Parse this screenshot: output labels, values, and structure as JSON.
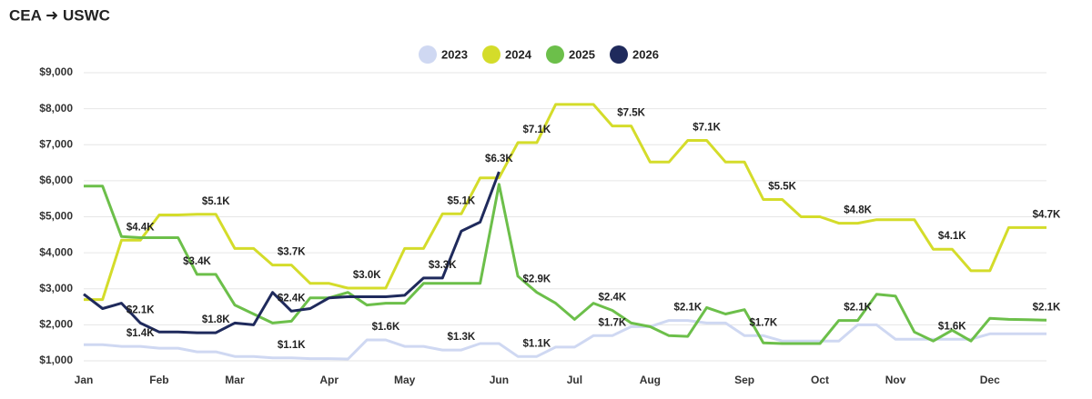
{
  "chart_data": {
    "type": "line",
    "title": "CEA ➜ USWC",
    "categories": [
      "Jan",
      null,
      null,
      null,
      "Feb",
      null,
      null,
      null,
      "Mar",
      null,
      null,
      null,
      null,
      "Apr",
      null,
      null,
      null,
      "May",
      null,
      null,
      null,
      null,
      "Jun",
      null,
      null,
      null,
      "Jul",
      null,
      null,
      null,
      "Aug",
      null,
      null,
      null,
      null,
      "Sep",
      null,
      null,
      null,
      "Oct",
      null,
      null,
      null,
      "Nov",
      null,
      null,
      null,
      null,
      "Dec",
      null,
      null,
      null
    ],
    "ylim": [
      1000,
      9000
    ],
    "yticks": [
      {
        "value": 1000,
        "label": "$1,000"
      },
      {
        "value": 2000,
        "label": "$2,000"
      },
      {
        "value": 3000,
        "label": "$3,000"
      },
      {
        "value": 4000,
        "label": "$4,000"
      },
      {
        "value": 5000,
        "label": "$5,000"
      },
      {
        "value": 6000,
        "label": "$6,000"
      },
      {
        "value": 7000,
        "label": "$7,000"
      },
      {
        "value": 8000,
        "label": "$8,000"
      },
      {
        "value": 9000,
        "label": "$9,000"
      }
    ],
    "grid": true,
    "legend": "top",
    "series": [
      {
        "name": "2023",
        "color": "#cfd8f2",
        "values": [
          1450,
          1450,
          1400,
          1400,
          1350,
          1350,
          1250,
          1250,
          1120,
          1120,
          1080,
          1080,
          1060,
          1060,
          1050,
          1580,
          1580,
          1400,
          1400,
          1300,
          1300,
          1480,
          1480,
          1120,
          1120,
          1380,
          1380,
          1700,
          1700,
          1950,
          1950,
          2120,
          2120,
          2050,
          2050,
          1700,
          1700,
          1550,
          1550,
          1550,
          1550,
          2000,
          2000,
          1600,
          1600,
          1600,
          1600,
          1600,
          1750,
          1750,
          1750,
          1750
        ],
        "value_labels": [
          null,
          null,
          null,
          "$1.4K",
          null,
          null,
          null,
          null,
          null,
          null,
          null,
          "$1.1K",
          null,
          null,
          null,
          null,
          "$1.6K",
          null,
          null,
          null,
          "$1.3K",
          null,
          null,
          null,
          "$1.1K",
          null,
          null,
          null,
          "$1.7K",
          null,
          null,
          null,
          "$2.1K",
          null,
          null,
          null,
          "$1.7K",
          null,
          null,
          null,
          null,
          null,
          null,
          null,
          null,
          null,
          "$1.6K",
          null,
          null,
          null,
          null,
          null
        ]
      },
      {
        "name": "2024",
        "color": "#d4dc2a",
        "values": [
          2700,
          2700,
          4350,
          4350,
          5050,
          5050,
          5070,
          5070,
          4120,
          4120,
          3660,
          3660,
          3150,
          3150,
          3020,
          3020,
          3020,
          4120,
          4120,
          5080,
          5080,
          6080,
          6080,
          7060,
          7060,
          8120,
          8120,
          8120,
          7520,
          7520,
          6520,
          6520,
          7120,
          7120,
          6520,
          6520,
          5480,
          5480,
          5000,
          5000,
          4820,
          4820,
          4920,
          4920,
          4920,
          4100,
          4100,
          3500,
          3500,
          4700,
          4700,
          4700
        ],
        "value_labels": [
          null,
          null,
          null,
          "$4.4K",
          null,
          null,
          null,
          "$5.1K",
          null,
          null,
          null,
          "$3.7K",
          null,
          null,
          null,
          "$3.0K",
          null,
          null,
          null,
          null,
          "$5.1K",
          null,
          null,
          null,
          "$7.1K",
          null,
          null,
          null,
          null,
          "$7.5K",
          null,
          null,
          null,
          "$7.1K",
          null,
          null,
          null,
          "$5.5K",
          null,
          null,
          null,
          "$4.8K",
          null,
          null,
          null,
          null,
          "$4.1K",
          null,
          null,
          null,
          null,
          "$4.7K"
        ]
      },
      {
        "name": "2025",
        "color": "#6cbf4a",
        "values": [
          5850,
          5850,
          4450,
          4420,
          4420,
          4420,
          3400,
          3400,
          2550,
          2300,
          2050,
          2100,
          2750,
          2750,
          2900,
          2550,
          2600,
          2600,
          3150,
          3150,
          3150,
          3150,
          5900,
          3350,
          2900,
          2600,
          2150,
          2600,
          2400,
          2050,
          1950,
          1700,
          1680,
          2480,
          2300,
          2420,
          1500,
          1480,
          1480,
          1480,
          2120,
          2120,
          2850,
          2800,
          1800,
          1550,
          1850,
          1550,
          2180,
          2150,
          2140,
          2130
        ],
        "value_labels": [
          null,
          null,
          null,
          null,
          null,
          null,
          "$3.4K",
          null,
          null,
          null,
          null,
          null,
          null,
          null,
          null,
          null,
          null,
          null,
          null,
          null,
          null,
          null,
          null,
          null,
          "$2.9K",
          null,
          null,
          null,
          "$2.4K",
          null,
          null,
          null,
          null,
          null,
          null,
          null,
          null,
          null,
          null,
          null,
          null,
          "$2.1K",
          null,
          null,
          null,
          null,
          null,
          null,
          null,
          null,
          null,
          "$2.1K"
        ]
      },
      {
        "name": "2026",
        "color": "#1f2a5c",
        "values": [
          2850,
          2450,
          2600,
          2050,
          1800,
          1800,
          1780,
          1780,
          2050,
          2000,
          2900,
          2380,
          2450,
          2750,
          2780,
          2780,
          2780,
          2820,
          3300,
          3300,
          4600,
          4850,
          6250,
          null,
          null,
          null,
          null,
          null,
          null,
          null,
          null,
          null,
          null,
          null,
          null,
          null,
          null,
          null,
          null,
          null,
          null,
          null,
          null,
          null,
          null,
          null,
          null,
          null,
          null,
          null,
          null,
          null
        ],
        "value_labels": [
          null,
          null,
          null,
          "$2.1K",
          null,
          null,
          null,
          "$1.8K",
          null,
          null,
          null,
          "$2.4K",
          null,
          null,
          null,
          null,
          null,
          null,
          null,
          "$3.3K",
          null,
          null,
          "$6.3K",
          null,
          null,
          null,
          null,
          null,
          null,
          null,
          null,
          null,
          null,
          null,
          null,
          null,
          null,
          null,
          null,
          null,
          null,
          null,
          null,
          null,
          null,
          null,
          null,
          null,
          null,
          null,
          null,
          null
        ]
      }
    ]
  }
}
